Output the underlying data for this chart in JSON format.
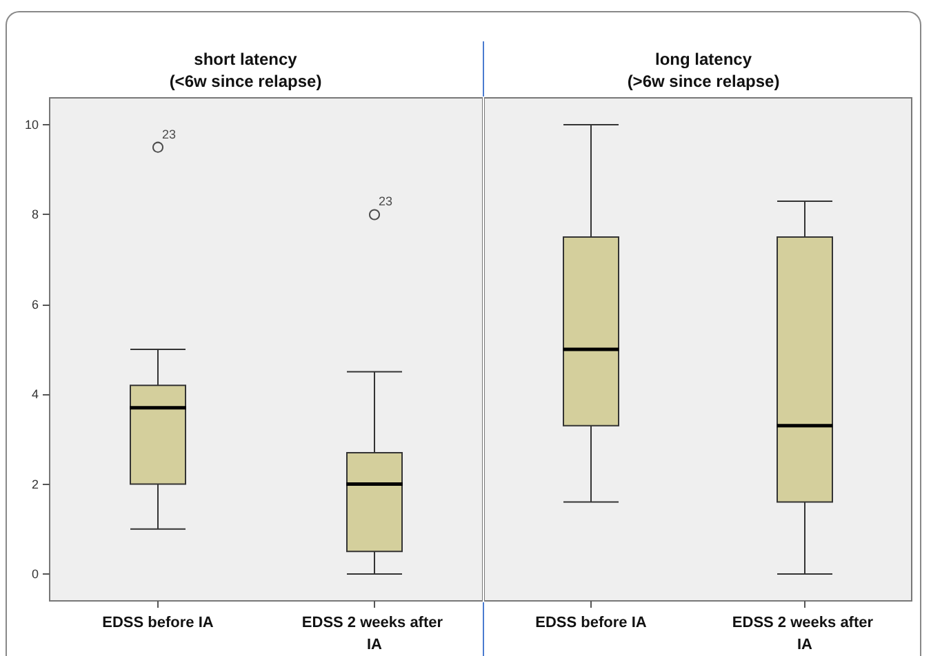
{
  "chart_data": [
    {
      "type": "box",
      "title": "short latency\n(<6w since relapse)",
      "categories": [
        "EDSS before IA",
        "EDSS 2 weeks after IA"
      ],
      "boxes": [
        {
          "low": 1,
          "q1": 2,
          "median": 3.7,
          "q3": 4.2,
          "high": 5,
          "outliers": [
            9.5
          ]
        },
        {
          "low": 0,
          "q1": 0.5,
          "median": 2,
          "q3": 2.7,
          "high": 4.5,
          "outliers": [
            8
          ]
        }
      ],
      "color": "#d4cf9c",
      "ylim": [
        -0.6,
        10.6
      ],
      "yticks": [
        0,
        2,
        4,
        6,
        8,
        10
      ],
      "grid": false,
      "annotations": [
        "23",
        "23"
      ]
    },
    {
      "type": "box",
      "title": "long latency\n(>6w since relapse)",
      "categories": [
        "EDSS before IA",
        "EDSS 2 weeks after IA"
      ],
      "boxes": [
        {
          "low": 1.6,
          "q1": 3.3,
          "median": 5,
          "q3": 7.5,
          "high": 10
        },
        {
          "low": 0,
          "q1": 1.6,
          "median": 3.3,
          "q3": 7.5,
          "high": 8.3
        }
      ],
      "color": "#d4cf9c",
      "ylim": [
        -0.6,
        10.6
      ],
      "yticks": [
        0,
        2,
        4,
        6,
        8,
        10
      ],
      "grid": false,
      "tick_labels": "x"
    }
  ]
}
